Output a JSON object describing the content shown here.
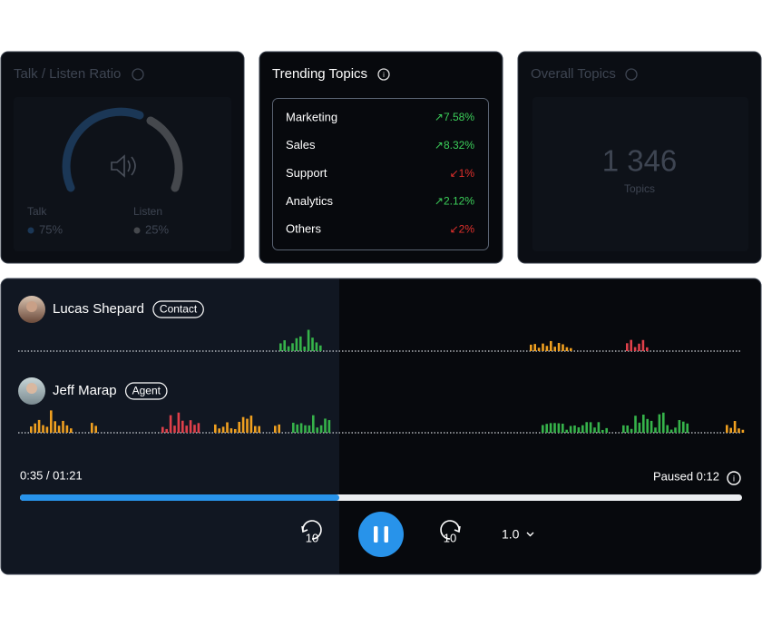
{
  "talk_listen": {
    "title": "Talk / Listen Ratio",
    "talk_label": "Talk",
    "talk_value": "75%",
    "listen_label": "Listen",
    "listen_value": "25%"
  },
  "trending": {
    "title": "Trending Topics",
    "topics": [
      {
        "name": "Marketing",
        "change": "↗7.58%",
        "trend": "up"
      },
      {
        "name": "Sales",
        "change": "↗8.32%",
        "trend": "up"
      },
      {
        "name": "Support",
        "change": "↙1%",
        "trend": "down"
      },
      {
        "name": "Analytics",
        "change": "↗2.12%",
        "trend": "up"
      },
      {
        "name": "Others",
        "change": "↙2%",
        "trend": "down"
      }
    ]
  },
  "overall": {
    "title": "Overall Topics",
    "count": "1 346",
    "label": "Topics"
  },
  "player": {
    "speakers": [
      {
        "name": "Lucas Shepard",
        "role": "Contact"
      },
      {
        "name": "Jeff Marap",
        "role": "Agent"
      }
    ],
    "time": "0:35 / 01:21",
    "status": "Paused 0:12",
    "skip_back": "10",
    "skip_forward": "10",
    "speed": "1.0"
  }
}
